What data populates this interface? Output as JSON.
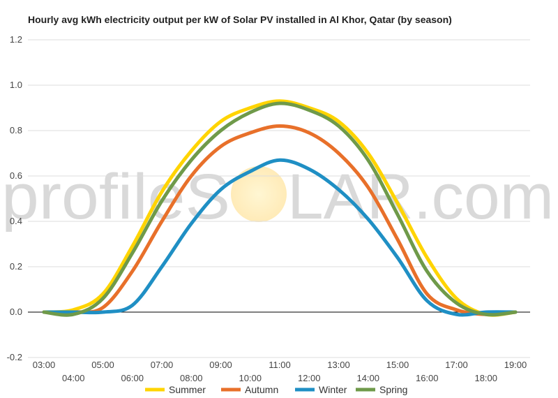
{
  "chart_data": {
    "type": "line",
    "title": "Hourly avg kWh electricity output per kW of Solar PV installed in Al Khor, Qatar (by season)",
    "xlabel": "",
    "ylabel": "",
    "x": [
      "03:00",
      "04:00",
      "05:00",
      "06:00",
      "07:00",
      "08:00",
      "09:00",
      "10:00",
      "11:00",
      "12:00",
      "13:00",
      "14:00",
      "15:00",
      "16:00",
      "17:00",
      "18:00",
      "19:00"
    ],
    "ylim": [
      -0.2,
      1.2
    ],
    "y_ticks": [
      "-0.2",
      "0.0",
      "0.2",
      "0.4",
      "0.6",
      "0.8",
      "1.0",
      "1.2"
    ],
    "grid": true,
    "legend_position": "bottom",
    "series": [
      {
        "name": "Summer",
        "color": "#FFD400",
        "values": [
          0.0,
          0.01,
          0.08,
          0.29,
          0.53,
          0.71,
          0.84,
          0.9,
          0.93,
          0.9,
          0.84,
          0.7,
          0.48,
          0.24,
          0.06,
          -0.01,
          0.0
        ]
      },
      {
        "name": "Autumn",
        "color": "#E8702A",
        "values": [
          0.0,
          0.0,
          0.02,
          0.18,
          0.4,
          0.6,
          0.73,
          0.79,
          0.82,
          0.79,
          0.7,
          0.55,
          0.32,
          0.08,
          0.01,
          -0.01,
          0.0
        ]
      },
      {
        "name": "Winter",
        "color": "#1F8FC4",
        "values": [
          0.0,
          0.0,
          0.0,
          0.03,
          0.2,
          0.39,
          0.54,
          0.62,
          0.67,
          0.63,
          0.54,
          0.41,
          0.24,
          0.05,
          -0.01,
          0.0,
          0.0
        ]
      },
      {
        "name": "Spring",
        "color": "#6F9A4A",
        "values": [
          0.0,
          -0.01,
          0.06,
          0.26,
          0.49,
          0.67,
          0.8,
          0.88,
          0.92,
          0.89,
          0.82,
          0.67,
          0.43,
          0.18,
          0.04,
          -0.01,
          0.0
        ]
      }
    ]
  },
  "watermark": {
    "text_left": "profileS",
    "text_right": "LAR.com",
    "sun_color": "#FFE9A8"
  }
}
